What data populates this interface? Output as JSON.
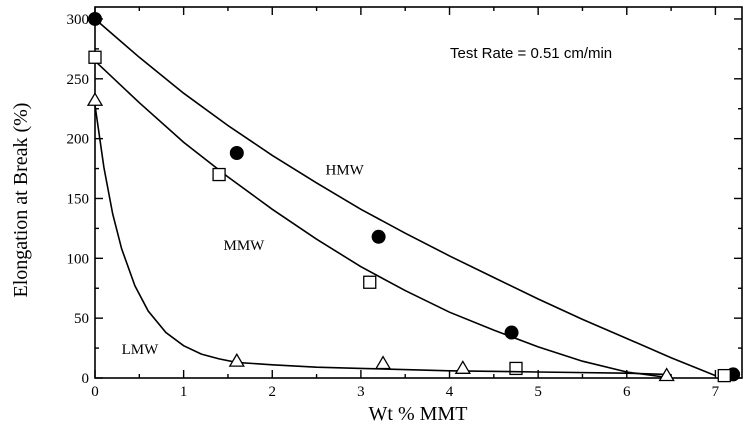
{
  "chart_data": {
    "type": "scatter",
    "title": "",
    "xlabel": "Wt % MMT",
    "ylabel": "Elongation at Break (%)",
    "xlim": [
      0,
      7.3
    ],
    "ylim": [
      0,
      310
    ],
    "xticks": [
      0,
      1,
      2,
      3,
      4,
      5,
      6,
      7
    ],
    "yticks": [
      0,
      50,
      100,
      150,
      200,
      250,
      300
    ],
    "grid": false,
    "annotation": "Test Rate = 0.51 cm/min",
    "series": [
      {
        "name": "HMW",
        "marker": "filled-circle",
        "label_at": [
          2.6,
          170
        ],
        "x": [
          0,
          1.6,
          3.2,
          4.7,
          7.2
        ],
        "y": [
          300,
          188,
          118,
          38,
          3
        ],
        "fit_x": [
          0,
          0.5,
          1,
          1.5,
          2,
          2.5,
          3,
          3.5,
          4,
          4.5,
          5,
          5.5,
          6,
          6.5,
          7
        ],
        "fit_y": [
          300,
          268,
          238,
          211,
          186,
          163,
          141,
          121,
          102,
          84,
          66,
          49,
          33,
          17,
          2
        ]
      },
      {
        "name": "MMW",
        "marker": "open-square",
        "label_at": [
          1.45,
          107
        ],
        "x": [
          0,
          1.4,
          3.1,
          4.75,
          7.1
        ],
        "y": [
          268,
          170,
          80,
          8,
          2
        ],
        "fit_x": [
          0,
          0.5,
          1,
          1.5,
          2,
          2.5,
          3,
          3.5,
          4,
          4.5,
          5,
          5.5,
          6,
          6.5
        ],
        "fit_y": [
          265,
          230,
          197,
          168,
          141,
          116,
          93,
          73,
          55,
          40,
          26,
          14,
          5,
          0
        ]
      },
      {
        "name": "LMW",
        "marker": "open-triangle",
        "label_at": [
          0.3,
          20
        ],
        "x": [
          0,
          1.6,
          3.25,
          4.15,
          6.45
        ],
        "y": [
          232,
          14,
          12,
          8,
          2
        ],
        "fit_x": [
          0,
          0.1,
          0.2,
          0.3,
          0.45,
          0.6,
          0.8,
          1,
          1.2,
          1.4,
          1.6,
          2,
          2.5,
          3,
          4,
          5,
          6,
          6.45
        ],
        "fit_y": [
          228,
          176,
          137,
          108,
          77,
          56,
          38,
          27,
          20,
          16,
          13,
          11,
          9,
          8,
          6,
          5,
          4,
          3
        ]
      }
    ]
  }
}
